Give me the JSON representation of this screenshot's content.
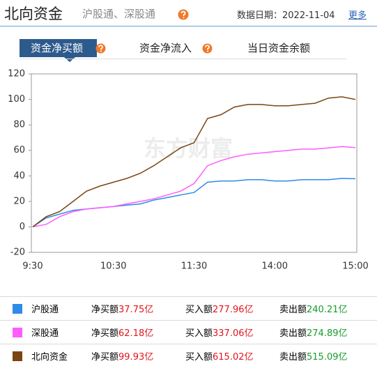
{
  "header": {
    "title": "北向资金",
    "subtitle": "沪股通、深股通",
    "date_label": "数据日期：",
    "date": "2022-11-04",
    "more": "更多"
  },
  "tabs": [
    "资金净买额",
    "资金净流入",
    "当日资金余额"
  ],
  "chart_data": {
    "type": "line",
    "watermark": "东方财富",
    "categories": [
      "9:30",
      null,
      null,
      null,
      null,
      null,
      "10:30",
      null,
      null,
      null,
      null,
      null,
      "11:30",
      null,
      null,
      null,
      null,
      null,
      "14:00",
      null,
      null,
      null,
      null,
      null,
      "15:00"
    ],
    "series": [
      {
        "name": "沪股通",
        "color": "#2f8be6",
        "values": [
          0,
          7,
          10,
          13,
          14,
          15,
          16,
          17,
          18,
          21,
          23,
          25,
          27,
          35,
          36,
          36,
          37,
          37,
          36,
          36,
          37,
          37,
          37,
          38,
          37.75
        ]
      },
      {
        "name": "深股通",
        "color": "#ff5cff",
        "values": [
          0,
          2,
          8,
          12,
          14,
          15,
          16,
          18,
          20,
          22,
          25,
          28,
          34,
          48,
          52,
          55,
          57,
          58,
          59,
          60,
          61,
          61,
          62,
          63,
          62.18
        ]
      },
      {
        "name": "北向资金",
        "color": "#7a4512",
        "values": [
          0,
          8,
          12,
          20,
          28,
          32,
          35,
          38,
          42,
          48,
          55,
          62,
          66,
          85,
          88,
          94,
          96,
          96,
          95,
          95,
          96,
          97,
          101,
          102,
          99.93
        ]
      }
    ],
    "ylim": [
      -20,
      120
    ],
    "yticks": [
      -20,
      0,
      20,
      40,
      60,
      80,
      100,
      120
    ],
    "grid": false
  },
  "table": {
    "rows": [
      [
        {
          "label": "净买额",
          "value": "37.75亿"
        },
        {
          "label": "买入额",
          "value": "277.96亿"
        },
        {
          "label": "卖出额",
          "value": "240.21亿"
        }
      ],
      [
        {
          "label": "净买额",
          "value": "62.18亿"
        },
        {
          "label": "买入额",
          "value": "337.06亿"
        },
        {
          "label": "卖出额",
          "value": "274.89亿"
        }
      ],
      [
        {
          "label": "净买额",
          "value": "99.93亿"
        },
        {
          "label": "买入额",
          "value": "615.02亿"
        },
        {
          "label": "卖出额",
          "value": "515.09亿"
        }
      ]
    ]
  }
}
